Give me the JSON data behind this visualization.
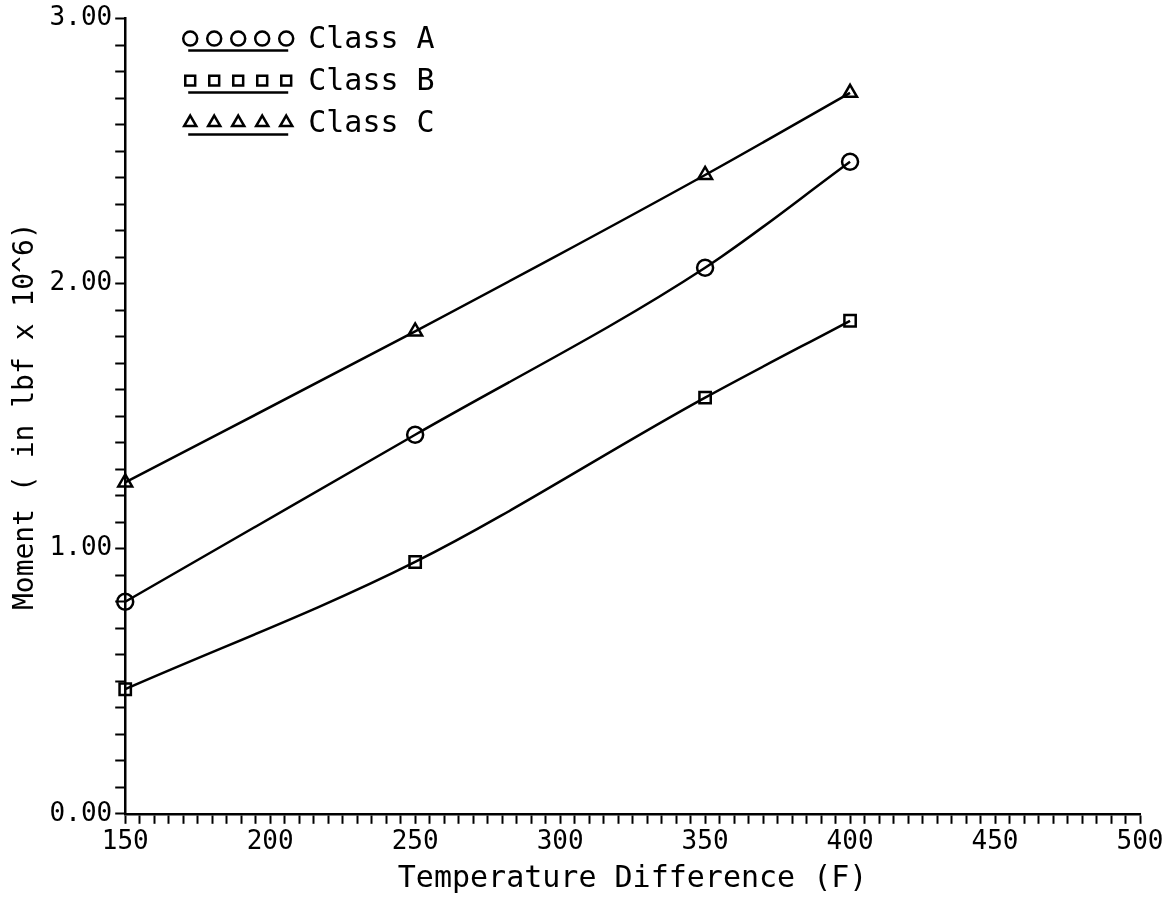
{
  "chart_data": {
    "type": "line",
    "xlabel": "Temperature Difference (F)",
    "ylabel": "Moment ( in lbf x 10^6)",
    "xlim": [
      150,
      500
    ],
    "ylim": [
      0,
      3
    ],
    "xticks": [
      150,
      {
        "value": 155,
        "label": null
      },
      {
        "value": 160,
        "label": null
      },
      {
        "value": 165,
        "label": null
      },
      {
        "value": 170,
        "label": null
      },
      {
        "value": 175,
        "label": null
      },
      {
        "value": 180,
        "label": null
      },
      {
        "value": 185,
        "label": null
      },
      {
        "value": 190,
        "label": null
      },
      {
        "value": 195,
        "label": null
      },
      200,
      {
        "value": 205,
        "label": null
      },
      {
        "value": 210,
        "label": null
      },
      {
        "value": 215,
        "label": null
      },
      {
        "value": 220,
        "label": null
      },
      {
        "value": 225,
        "label": null
      },
      {
        "value": 230,
        "label": null
      },
      {
        "value": 235,
        "label": null
      },
      {
        "value": 240,
        "label": null
      },
      {
        "value": 245,
        "label": null
      },
      250,
      {
        "value": 255,
        "label": null
      },
      {
        "value": 260,
        "label": null
      },
      {
        "value": 265,
        "label": null
      },
      {
        "value": 270,
        "label": null
      },
      {
        "value": 275,
        "label": null
      },
      {
        "value": 280,
        "label": null
      },
      {
        "value": 285,
        "label": null
      },
      {
        "value": 290,
        "label": null
      },
      {
        "value": 295,
        "label": null
      },
      300,
      {
        "value": 305,
        "label": null
      },
      {
        "value": 310,
        "label": null
      },
      {
        "value": 315,
        "label": null
      },
      {
        "value": 320,
        "label": null
      },
      {
        "value": 325,
        "label": null
      },
      {
        "value": 330,
        "label": null
      },
      {
        "value": 335,
        "label": null
      },
      {
        "value": 340,
        "label": null
      },
      {
        "value": 345,
        "label": null
      },
      350,
      {
        "value": 355,
        "label": null
      },
      {
        "value": 360,
        "label": null
      },
      {
        "value": 365,
        "label": null
      },
      {
        "value": 370,
        "label": null
      },
      {
        "value": 375,
        "label": null
      },
      {
        "value": 380,
        "label": null
      },
      {
        "value": 385,
        "label": null
      },
      {
        "value": 390,
        "label": null
      },
      {
        "value": 395,
        "label": null
      },
      400,
      {
        "value": 405,
        "label": null
      },
      {
        "value": 410,
        "label": null
      },
      {
        "value": 415,
        "label": null
      },
      {
        "value": 420,
        "label": null
      },
      {
        "value": 425,
        "label": null
      },
      {
        "value": 430,
        "label": null
      },
      {
        "value": 435,
        "label": null
      },
      {
        "value": 440,
        "label": null
      },
      {
        "value": 445,
        "label": null
      },
      450,
      {
        "value": 455,
        "label": null
      },
      {
        "value": 460,
        "label": null
      },
      {
        "value": 465,
        "label": null
      },
      {
        "value": 470,
        "label": null
      },
      {
        "value": 475,
        "label": null
      },
      {
        "value": 480,
        "label": null
      },
      {
        "value": 485,
        "label": null
      },
      {
        "value": 490,
        "label": null
      },
      {
        "value": 495,
        "label": null
      },
      500
    ],
    "yticks": [
      {
        "value": 0,
        "label": "0.00"
      },
      {
        "value": 0.1,
        "label": null
      },
      {
        "value": 0.2,
        "label": null
      },
      {
        "value": 0.3,
        "label": null
      },
      {
        "value": 0.4,
        "label": null
      },
      {
        "value": 0.5,
        "label": null
      },
      {
        "value": 0.6,
        "label": null
      },
      {
        "value": 0.7,
        "label": null
      },
      {
        "value": 0.8,
        "label": null
      },
      {
        "value": 0.9,
        "label": null
      },
      {
        "value": 1,
        "label": "1.00"
      },
      {
        "value": 1.1,
        "label": null
      },
      {
        "value": 1.2,
        "label": null
      },
      {
        "value": 1.3,
        "label": null
      },
      {
        "value": 1.4,
        "label": null
      },
      {
        "value": 1.5,
        "label": null
      },
      {
        "value": 1.6,
        "label": null
      },
      {
        "value": 1.7,
        "label": null
      },
      {
        "value": 1.8,
        "label": null
      },
      {
        "value": 1.9,
        "label": null
      },
      {
        "value": 2,
        "label": "2.00"
      },
      {
        "value": 2.1,
        "label": null
      },
      {
        "value": 2.2,
        "label": null
      },
      {
        "value": 2.3,
        "label": null
      },
      {
        "value": 2.4,
        "label": null
      },
      {
        "value": 2.5,
        "label": null
      },
      {
        "value": 2.6,
        "label": null
      },
      {
        "value": 2.7,
        "label": null
      },
      {
        "value": 2.8,
        "label": null
      },
      {
        "value": 2.9,
        "label": null
      },
      {
        "value": 3,
        "label": "3.00"
      }
    ],
    "x": [
      150,
      250,
      350,
      400
    ],
    "grid": false,
    "legend": "top left",
    "line_style": "solid",
    "series": [
      {
        "name": "Class A",
        "color": "#000000",
        "marker": "circle",
        "values": [
          0.8,
          1.43,
          2.06,
          2.46
        ]
      },
      {
        "name": "Class B",
        "color": "#000000",
        "marker": "square",
        "values": [
          0.47,
          0.95,
          1.57,
          1.86
        ]
      },
      {
        "name": "Class C",
        "color": "#000000",
        "marker": "triangle",
        "values": [
          1.25,
          1.82,
          2.41,
          2.72
        ]
      }
    ]
  }
}
